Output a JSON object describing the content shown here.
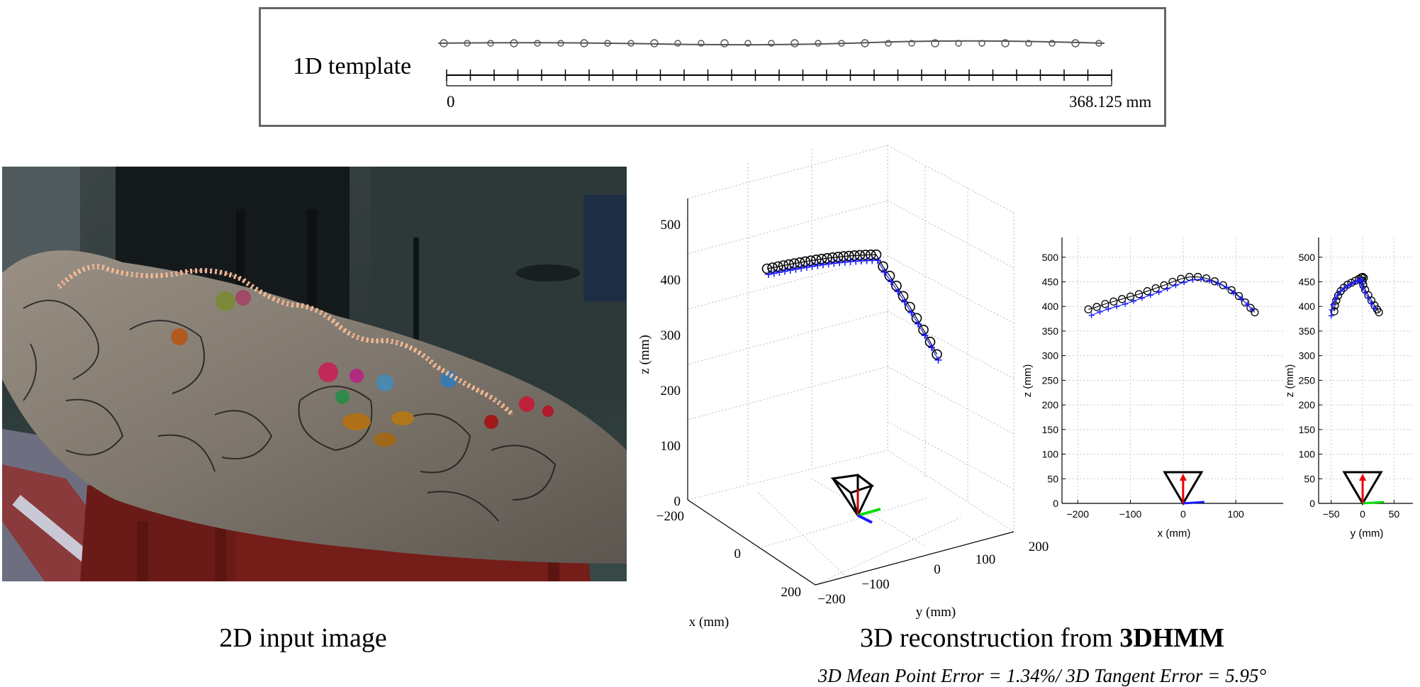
{
  "template": {
    "label": "1D template",
    "scale_start": "0",
    "scale_end": "368.125 mm"
  },
  "photo_caption": "2D input image",
  "reconstruction_caption_prefix": "3D reconstruction from ",
  "reconstruction_caption_bold": "3DHMM",
  "error_text": "3D Mean Point Error = 1.34%/ 3D Tangent Error = 5.95°",
  "chart_data": [
    {
      "type": "line3d",
      "xlabel": "x (mm)",
      "ylabel": "y (mm)",
      "zlabel": "z (mm)",
      "x_ticks": [
        "−200",
        "0",
        "200"
      ],
      "y_ticks": [
        "−200",
        "−100",
        "0",
        "100",
        "200"
      ],
      "z_ticks": [
        "0",
        "100",
        "200",
        "300",
        "400",
        "500"
      ],
      "series": [
        {
          "marker": "circle",
          "color": "#000000"
        },
        {
          "marker": "plus",
          "color": "#1a1aff"
        }
      ]
    },
    {
      "type": "line",
      "xlabel": "x (mm)",
      "ylabel": "z (mm)",
      "xlim": [
        -230,
        190
      ],
      "ylim": [
        0,
        540
      ],
      "x_ticks": [
        "−200",
        "−100",
        "0",
        "100"
      ],
      "x_tick_values": [
        -200,
        -100,
        0,
        100
      ],
      "y_ticks": [
        "0",
        "50",
        "100",
        "150",
        "200",
        "250",
        "300",
        "350",
        "400",
        "450",
        "500"
      ],
      "y_tick_values": [
        0,
        50,
        100,
        150,
        200,
        250,
        300,
        350,
        400,
        450,
        500
      ],
      "gt_x": [
        -180,
        -164,
        -148,
        -132,
        -116,
        -100,
        -84,
        -68,
        -52,
        -36,
        -20,
        -4,
        12,
        28,
        44,
        60,
        76,
        92,
        106,
        118,
        128,
        136
      ],
      "gt_z": [
        394,
        399,
        405,
        410,
        415,
        420,
        425,
        431,
        437,
        443,
        450,
        456,
        460,
        460,
        457,
        451,
        443,
        433,
        421,
        408,
        397,
        388
      ],
      "est_x": [
        -174,
        -158,
        -142,
        -126,
        -110,
        -94,
        -78,
        -62,
        -46,
        -30,
        -14,
        2,
        18,
        34,
        50,
        66,
        82,
        96,
        110,
        122,
        131
      ],
      "est_z": [
        382,
        389,
        395,
        400,
        405,
        411,
        417,
        423,
        429,
        436,
        443,
        449,
        454,
        455,
        452,
        447,
        439,
        428,
        416,
        404,
        393
      ],
      "axis_colors": {
        "x": "#1a1aff",
        "z": "#ff0000"
      }
    },
    {
      "type": "line",
      "xlabel": "y (mm)",
      "ylabel": "z (mm)",
      "xlim": [
        -70,
        80
      ],
      "ylim": [
        0,
        540
      ],
      "x_ticks": [
        "−50",
        "0",
        "50"
      ],
      "x_tick_values": [
        -50,
        0,
        50
      ],
      "y_ticks": [
        "0",
        "50",
        "100",
        "150",
        "200",
        "250",
        "300",
        "350",
        "400",
        "450",
        "500"
      ],
      "y_tick_values": [
        0,
        50,
        100,
        150,
        200,
        250,
        300,
        350,
        400,
        450,
        500
      ],
      "gt_x": [
        -45,
        -44,
        -42,
        -39,
        -35,
        -30,
        -24,
        -18,
        -12,
        -6,
        -2,
        0,
        2,
        0,
        1,
        4,
        9,
        14,
        19,
        23,
        26
      ],
      "gt_z": [
        390,
        402,
        412,
        422,
        431,
        438,
        444,
        448,
        452,
        456,
        459,
        460,
        458,
        452,
        444,
        434,
        423,
        412,
        402,
        394,
        388
      ],
      "est_x": [
        -50,
        -49,
        -47,
        -44,
        -40,
        -35,
        -29,
        -23,
        -17,
        -11,
        -6,
        -3,
        -1,
        -2,
        0,
        4,
        9,
        14,
        19
      ],
      "est_z": [
        381,
        393,
        404,
        414,
        423,
        431,
        437,
        442,
        446,
        450,
        453,
        455,
        452,
        446,
        438,
        428,
        417,
        406,
        396
      ],
      "axis_colors": {
        "y": "#00dd00",
        "z": "#ff0000"
      }
    }
  ]
}
